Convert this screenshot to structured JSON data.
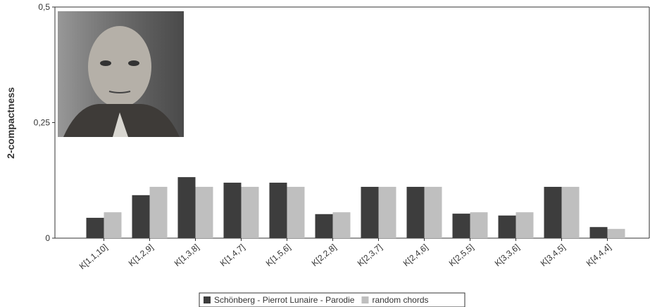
{
  "chart_data": {
    "type": "bar",
    "y_label": "2-compactness",
    "categories": [
      "K[1,1,10]",
      "K[1,2,9]",
      "K[1,3,8]",
      "K[1,4,7]",
      "K[1,5,6]",
      "K[2,2,8]",
      "K[2,3,7]",
      "K[2,4,6]",
      "K[2,5,5]",
      "K[3,3,6]",
      "K[3,4,5]",
      "K[4,4,4]"
    ],
    "series": [
      {
        "name": "Schönberg - Pierrot Lunaire - Parodie",
        "color": "#3d3d3d",
        "values": [
          0.044,
          0.093,
          0.132,
          0.12,
          0.12,
          0.052,
          0.111,
          0.111,
          0.053,
          0.049,
          0.111,
          0.024
        ]
      },
      {
        "name": "random chords",
        "color": "#bfbfbf",
        "values": [
          0.056,
          0.111,
          0.111,
          0.111,
          0.111,
          0.056,
          0.111,
          0.111,
          0.056,
          0.056,
          0.111,
          0.02
        ]
      }
    ],
    "ylim": [
      0,
      0.5
    ],
    "yticks": [
      {
        "value": 0,
        "label": "0"
      },
      {
        "value": 0.25,
        "label": "0,25"
      },
      {
        "value": 0.5,
        "label": "0,5"
      }
    ]
  }
}
